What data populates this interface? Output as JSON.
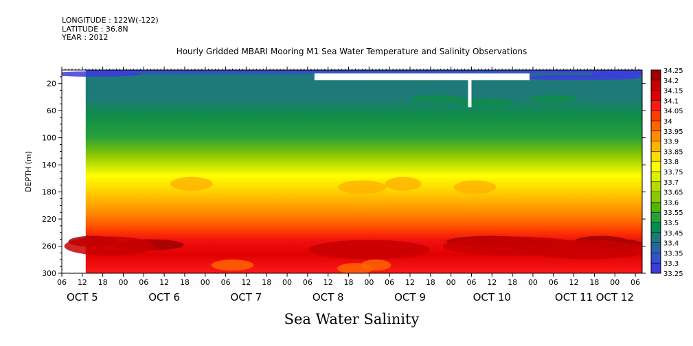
{
  "header": {
    "longitude": "LONGITUDE : 122W(-122)",
    "latitude": "LATITUDE : 36.8N",
    "year": "YEAR : 2012"
  },
  "colors": {
    "surface_blue": "#3c3cdc",
    "teal": "#1e7a78",
    "green": "#1a9a46",
    "yellow": "#f0f018",
    "orange": "#ff8a00",
    "red": "#f01010",
    "dark_red": "#a50000"
  },
  "chart_data": {
    "type": "heatmap",
    "title": "Hourly Gridded MBARI Mooring M1 Sea Water Temperature and Salinity Observations",
    "subtitle": "Sea Water Salinity",
    "ylabel": "DEPTH (m)",
    "xlabel": "",
    "y_range": [
      0,
      300
    ],
    "y_inverted": true,
    "y_ticks": [
      20,
      60,
      100,
      140,
      180,
      220,
      260,
      300
    ],
    "x_range": [
      "2012-10-05T06:00",
      "2012-10-12T08:00"
    ],
    "data_start": "2012-10-05T13:00",
    "x_hour_ticks": [
      "06",
      "12",
      "18",
      "00",
      "06",
      "12",
      "18",
      "00",
      "06",
      "12",
      "18",
      "00",
      "06",
      "12",
      "18",
      "00",
      "06",
      "12",
      "18",
      "00",
      "06",
      "12",
      "18",
      "00",
      "06",
      "12",
      "18",
      "00",
      "06"
    ],
    "x_day_labels": [
      "OCT  5",
      "OCT  6",
      "OCT  7",
      "OCT  8",
      "OCT  9",
      "OCT 10",
      "OCT 11",
      "OCT 12"
    ],
    "colorbar_levels": [
      "34.25",
      "34.2",
      "34.15",
      "34.1",
      "34.05",
      "34",
      "33.95",
      "33.9",
      "33.85",
      "33.8",
      "33.75",
      "33.7",
      "33.65",
      "33.6",
      "33.55",
      "33.5",
      "33.45",
      "33.4",
      "33.35",
      "33.3",
      "33.25"
    ],
    "colorbar_colors": [
      "#a00000",
      "#c80000",
      "#e00000",
      "#ff1818",
      "#ff3c00",
      "#ff6400",
      "#ff8c00",
      "#ffb400",
      "#ffdc00",
      "#ffff00",
      "#dcf000",
      "#b4dc00",
      "#8cc800",
      "#50b400",
      "#28a03c",
      "#008c50",
      "#1e7878",
      "#2864a0",
      "#3250c8",
      "#3c3cdc",
      "#6428e6",
      "#9614f0",
      "#c800ff",
      "#e000ff"
    ],
    "gap_segments": [
      {
        "x_start": "2012-10-08T08:00",
        "x_end": "2012-10-10T23:00",
        "depth_top": 5,
        "depth_bottom": 15
      },
      {
        "x_start": "2012-10-10T05:00",
        "x_end": "2012-10-10T06:00",
        "depth_top": 5,
        "depth_bottom": 55
      }
    ],
    "depth_profile": [
      {
        "depth": 5,
        "salinity": 33.4
      },
      {
        "depth": 20,
        "salinity": 33.55
      },
      {
        "depth": 60,
        "salinity": 33.6
      },
      {
        "depth": 100,
        "salinity": 33.7
      },
      {
        "depth": 140,
        "salinity": 33.8
      },
      {
        "depth": 180,
        "salinity": 33.95
      },
      {
        "depth": 220,
        "salinity": 34.1
      },
      {
        "depth": 260,
        "salinity": 34.2
      },
      {
        "depth": 300,
        "salinity": 34.15
      }
    ]
  }
}
